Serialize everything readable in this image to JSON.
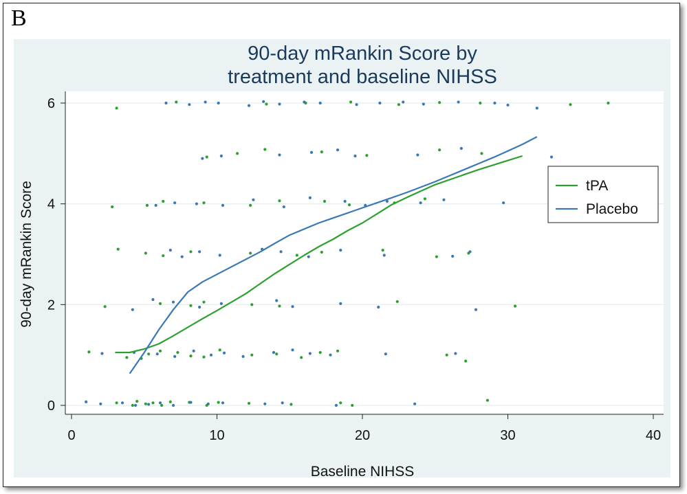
{
  "panel_label": "B",
  "chart_data": {
    "type": "scatter",
    "title": [
      "90-day mRankin Score by",
      "treatment and baseline NIHSS"
    ],
    "xlabel": "Baseline NIHSS",
    "ylabel": "90-day mRankin Score",
    "xlim": [
      0,
      40
    ],
    "ylim": [
      0,
      6
    ],
    "xticks": [
      0,
      10,
      20,
      30,
      40
    ],
    "yticks": [
      0,
      2,
      4,
      6
    ],
    "grid": "horizontal",
    "legend_position": "right",
    "colors": {
      "tPA": "#2ca02c",
      "Placebo": "#3a78b5",
      "background": "#eaf2f3",
      "plot_bg": "#ffffff"
    },
    "series": [
      {
        "name": "tPA",
        "kind": "smoothed_line",
        "color": "#2ca02c",
        "x": [
          3,
          4,
          5,
          6,
          7,
          8,
          9,
          10,
          11,
          12,
          13,
          14,
          15,
          16,
          17,
          18,
          19,
          20,
          21,
          22,
          23,
          24,
          25,
          26,
          27,
          28,
          29,
          30,
          31
        ],
        "values": [
          1.05,
          1.05,
          1.12,
          1.22,
          1.38,
          1.55,
          1.72,
          1.88,
          2.05,
          2.22,
          2.42,
          2.62,
          2.8,
          2.98,
          3.15,
          3.3,
          3.47,
          3.62,
          3.8,
          3.98,
          4.12,
          4.25,
          4.38,
          4.48,
          4.58,
          4.68,
          4.77,
          4.86,
          4.95
        ]
      },
      {
        "name": "Placebo",
        "kind": "smoothed_line",
        "color": "#3a78b5",
        "x": [
          4,
          5,
          6,
          7,
          8,
          9,
          10,
          11,
          12,
          13,
          14,
          15,
          16,
          17,
          18,
          19,
          20,
          21,
          22,
          23,
          24,
          25,
          26,
          27,
          28,
          29,
          30,
          31,
          32
        ],
        "values": [
          0.63,
          1.05,
          1.5,
          1.9,
          2.25,
          2.45,
          2.6,
          2.75,
          2.9,
          3.05,
          3.22,
          3.38,
          3.5,
          3.62,
          3.72,
          3.82,
          3.92,
          4.02,
          4.12,
          4.22,
          4.33,
          4.44,
          4.56,
          4.68,
          4.8,
          4.92,
          5.05,
          5.18,
          5.33
        ]
      },
      {
        "name": "tPA points",
        "kind": "jitter_points",
        "color": "#2ca02c",
        "x": [
          3.1,
          4.2,
          4.5,
          5.1,
          5.6,
          6.2,
          6.8,
          8.1,
          9.3,
          10.1,
          12.2,
          15.1,
          18.5,
          19.3,
          28.6,
          1.2,
          3.8,
          4.8,
          5.3,
          6.1,
          7.3,
          8.2,
          9.1,
          10.2,
          12.4,
          14.1,
          15.8,
          17.1,
          18.3,
          25.8,
          27.1,
          2.3,
          6.1,
          8.2,
          9.1,
          12.4,
          14.3,
          22.4,
          30.5,
          3.2,
          5.1,
          6.3,
          8.2,
          12.3,
          15.5,
          17.2,
          21.4,
          25.1,
          27.3,
          2.8,
          5.2,
          6.3,
          9.1,
          12.3,
          14.3,
          17.4,
          19.1,
          22.2,
          24.3,
          9.3,
          11.4,
          13.3,
          17.2,
          20.3,
          25.3,
          28.2,
          3.1,
          7.2,
          13.4,
          16.1,
          19.2,
          22.5,
          25.3,
          28.1,
          34.3,
          36.9
        ],
        "values": [
          0.05,
          0.0,
          0.08,
          0.03,
          0.05,
          0.0,
          0.07,
          0.06,
          0.0,
          0.06,
          0.04,
          0.02,
          0.05,
          0.0,
          0.1,
          1.06,
          0.95,
          0.93,
          1.02,
          1.08,
          1.05,
          0.98,
          0.96,
          1.1,
          1.0,
          1.02,
          0.95,
          1.05,
          1.08,
          1.0,
          0.88,
          1.96,
          2.02,
          1.98,
          2.05,
          2.0,
          1.97,
          2.06,
          1.97,
          3.1,
          3.02,
          2.97,
          3.05,
          3.02,
          2.98,
          3.04,
          3.08,
          2.95,
          3.02,
          3.94,
          3.97,
          4.05,
          4.02,
          3.97,
          4.06,
          4.05,
          3.98,
          4.02,
          4.1,
          4.93,
          5.0,
          5.08,
          5.03,
          4.96,
          5.07,
          5.0,
          5.9,
          6.02,
          5.98,
          6.0,
          6.02,
          5.97,
          6.01,
          6.0,
          5.97,
          6.0
        ]
      },
      {
        "name": "Placebo points",
        "kind": "jitter_points",
        "color": "#3a78b5",
        "x": [
          1.0,
          2.0,
          3.5,
          4.4,
          5.3,
          6.1,
          7.0,
          8.2,
          9.4,
          10.4,
          13.3,
          14.5,
          18.2,
          23.6,
          2.1,
          4.3,
          5.9,
          7.1,
          8.4,
          9.6,
          10.5,
          11.8,
          13.9,
          15.2,
          16.4,
          17.8,
          21.6,
          26.4,
          4.2,
          5.6,
          7.0,
          8.8,
          10.3,
          14.1,
          15.2,
          18.5,
          21.1,
          27.8,
          6.8,
          7.6,
          8.8,
          10.2,
          13.1,
          14.4,
          16.3,
          18.5,
          21.5,
          26.2,
          27.4,
          5.8,
          7.1,
          8.6,
          10.4,
          12.5,
          14.6,
          16.4,
          18.8,
          20.2,
          21.7,
          24.0,
          25.6,
          29.7,
          9.0,
          10.3,
          14.3,
          16.5,
          18.3,
          19.5,
          23.8,
          26.8,
          33.0,
          6.5,
          8.1,
          9.2,
          10.1,
          12.2,
          13.2,
          14.3,
          16.0,
          17.1,
          19.6,
          21.2,
          22.8,
          24.2,
          26.6,
          29.1,
          30.0,
          32.0
        ],
        "values": [
          0.07,
          0.03,
          0.05,
          0.0,
          0.02,
          0.05,
          0.0,
          0.06,
          0.03,
          0.05,
          0.03,
          0.05,
          0.0,
          0.03,
          1.03,
          1.05,
          1.02,
          0.97,
          1.08,
          1.0,
          1.04,
          0.97,
          1.05,
          1.1,
          1.03,
          1.0,
          1.02,
          1.03,
          1.9,
          2.1,
          2.05,
          1.95,
          2.02,
          2.08,
          1.96,
          2.02,
          1.95,
          1.9,
          3.08,
          2.95,
          3.05,
          2.98,
          3.1,
          3.05,
          2.95,
          3.08,
          2.98,
          2.96,
          3.05,
          3.97,
          4.02,
          4.0,
          3.97,
          4.08,
          3.94,
          4.12,
          4.05,
          3.97,
          4.05,
          4.02,
          4.08,
          4.02,
          4.9,
          4.95,
          4.97,
          5.02,
          5.07,
          4.95,
          4.97,
          5.1,
          4.93,
          6.0,
          5.97,
          6.02,
          6.0,
          5.95,
          6.03,
          5.98,
          6.02,
          6.0,
          5.97,
          6.0,
          6.02,
          5.98,
          6.02,
          6.0,
          5.96,
          5.9
        ]
      }
    ]
  }
}
